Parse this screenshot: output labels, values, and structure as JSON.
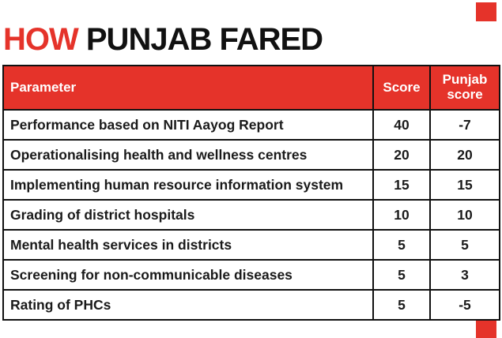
{
  "accent_color": "#e5332a",
  "title": {
    "red_word": "HOW",
    "rest": " PUNJAB FARED"
  },
  "chart_data": {
    "type": "table",
    "title": "HOW PUNJAB FARED",
    "columns": [
      "Parameter",
      "Score",
      "Punjab score"
    ],
    "rows": [
      [
        "Performance based on NITI Aayog Report",
        "40",
        "-7"
      ],
      [
        "Operationalising health and wellness centres",
        "20",
        "20"
      ],
      [
        "Implementing human resource information system",
        "15",
        "15"
      ],
      [
        "Grading of district hospitals",
        "10",
        "10"
      ],
      [
        "Mental health services in districts",
        "5",
        "5"
      ],
      [
        "Screening for non-communicable diseases",
        "5",
        "3"
      ],
      [
        "Rating of PHCs",
        "5",
        "-5"
      ]
    ]
  }
}
